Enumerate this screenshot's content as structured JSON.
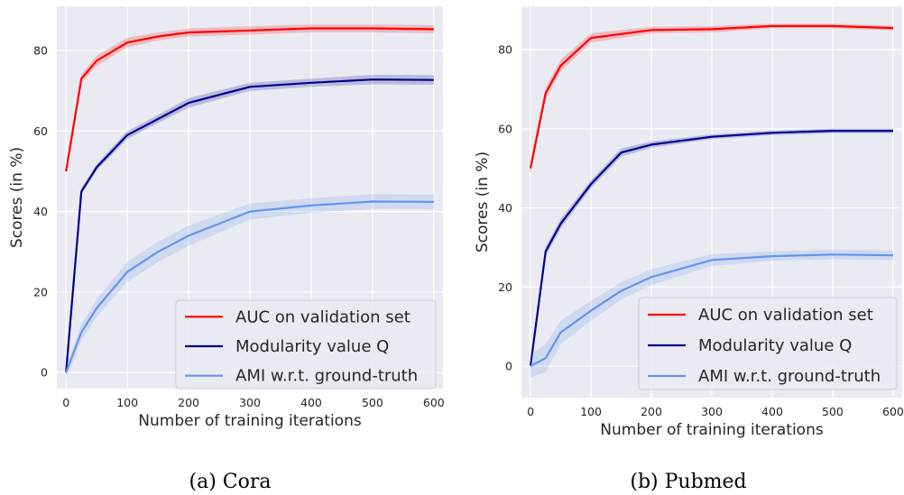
{
  "chart_data": [
    {
      "type": "line",
      "caption": "(a) Cora",
      "xlabel": "Number of training iterations",
      "ylabel": "Scores (in %)",
      "xlim": [
        -15,
        615
      ],
      "ylim": [
        -4,
        91
      ],
      "xticks": [
        0,
        100,
        200,
        300,
        400,
        500,
        600
      ],
      "yticks": [
        0,
        20,
        40,
        60,
        80
      ],
      "grid": true,
      "legend_position": "lower-right",
      "x": [
        0,
        25,
        50,
        100,
        150,
        200,
        300,
        400,
        500,
        600
      ],
      "series": [
        {
          "name": "AUC on validation set",
          "color": "#ff0000",
          "values": [
            50,
            73,
            77.5,
            82,
            83.5,
            84.5,
            85,
            85.5,
            85.5,
            85.3
          ],
          "band": [
            1.0,
            1.0,
            1.3,
            1.2,
            1.0,
            1.0,
            1.0,
            1.0,
            1.0,
            1.0
          ]
        },
        {
          "name": "Modularity value Q",
          "color": "#00008b",
          "values": [
            0,
            45,
            51,
            59,
            63,
            67,
            71,
            72,
            72.8,
            72.7
          ],
          "band": [
            0.8,
            0.8,
            0.8,
            1.0,
            1.0,
            1.2,
            1.0,
            1.0,
            1.2,
            1.2
          ]
        },
        {
          "name": "AMI w.r.t. ground-truth",
          "color": "#6495ed",
          "values": [
            0,
            10,
            16,
            25,
            30,
            34,
            40,
            41.5,
            42.5,
            42.4
          ],
          "band": [
            1.5,
            2.0,
            2.2,
            2.5,
            2.5,
            2.5,
            2.0,
            1.8,
            1.8,
            1.8
          ]
        }
      ]
    },
    {
      "type": "line",
      "caption": "(b) Pubmed",
      "xlabel": "Number of training iterations",
      "ylabel": "Scores (in %)",
      "xlim": [
        -15,
        615
      ],
      "ylim": [
        -8,
        91
      ],
      "xticks": [
        0,
        100,
        200,
        300,
        400,
        500,
        600
      ],
      "yticks": [
        0,
        20,
        40,
        60,
        80
      ],
      "grid": true,
      "legend_position": "lower-right",
      "x": [
        0,
        25,
        50,
        100,
        150,
        200,
        300,
        400,
        500,
        600
      ],
      "series": [
        {
          "name": "AUC on validation set",
          "color": "#ff0000",
          "values": [
            50,
            69,
            76,
            83,
            84,
            85,
            85.2,
            86,
            86,
            85.5
          ],
          "band": [
            1.5,
            1.5,
            1.5,
            1.2,
            1.0,
            0.8,
            0.8,
            0.6,
            0.6,
            0.6
          ]
        },
        {
          "name": "Modularity value Q",
          "color": "#00008b",
          "values": [
            0,
            29,
            36,
            46,
            54,
            56,
            58,
            59,
            59.5,
            59.5
          ],
          "band": [
            1.0,
            1.2,
            1.2,
            1.0,
            1.0,
            0.8,
            0.6,
            0.6,
            0.6,
            0.6
          ]
        },
        {
          "name": "AMI w.r.t. ground-truth",
          "color": "#6495ed",
          "values": [
            0,
            2,
            8.5,
            14,
            19,
            22.5,
            26.8,
            27.8,
            28.2,
            28
          ],
          "band": [
            3.0,
            3.5,
            3.0,
            2.5,
            2.2,
            2.0,
            1.5,
            1.2,
            1.2,
            1.2
          ]
        }
      ]
    }
  ]
}
